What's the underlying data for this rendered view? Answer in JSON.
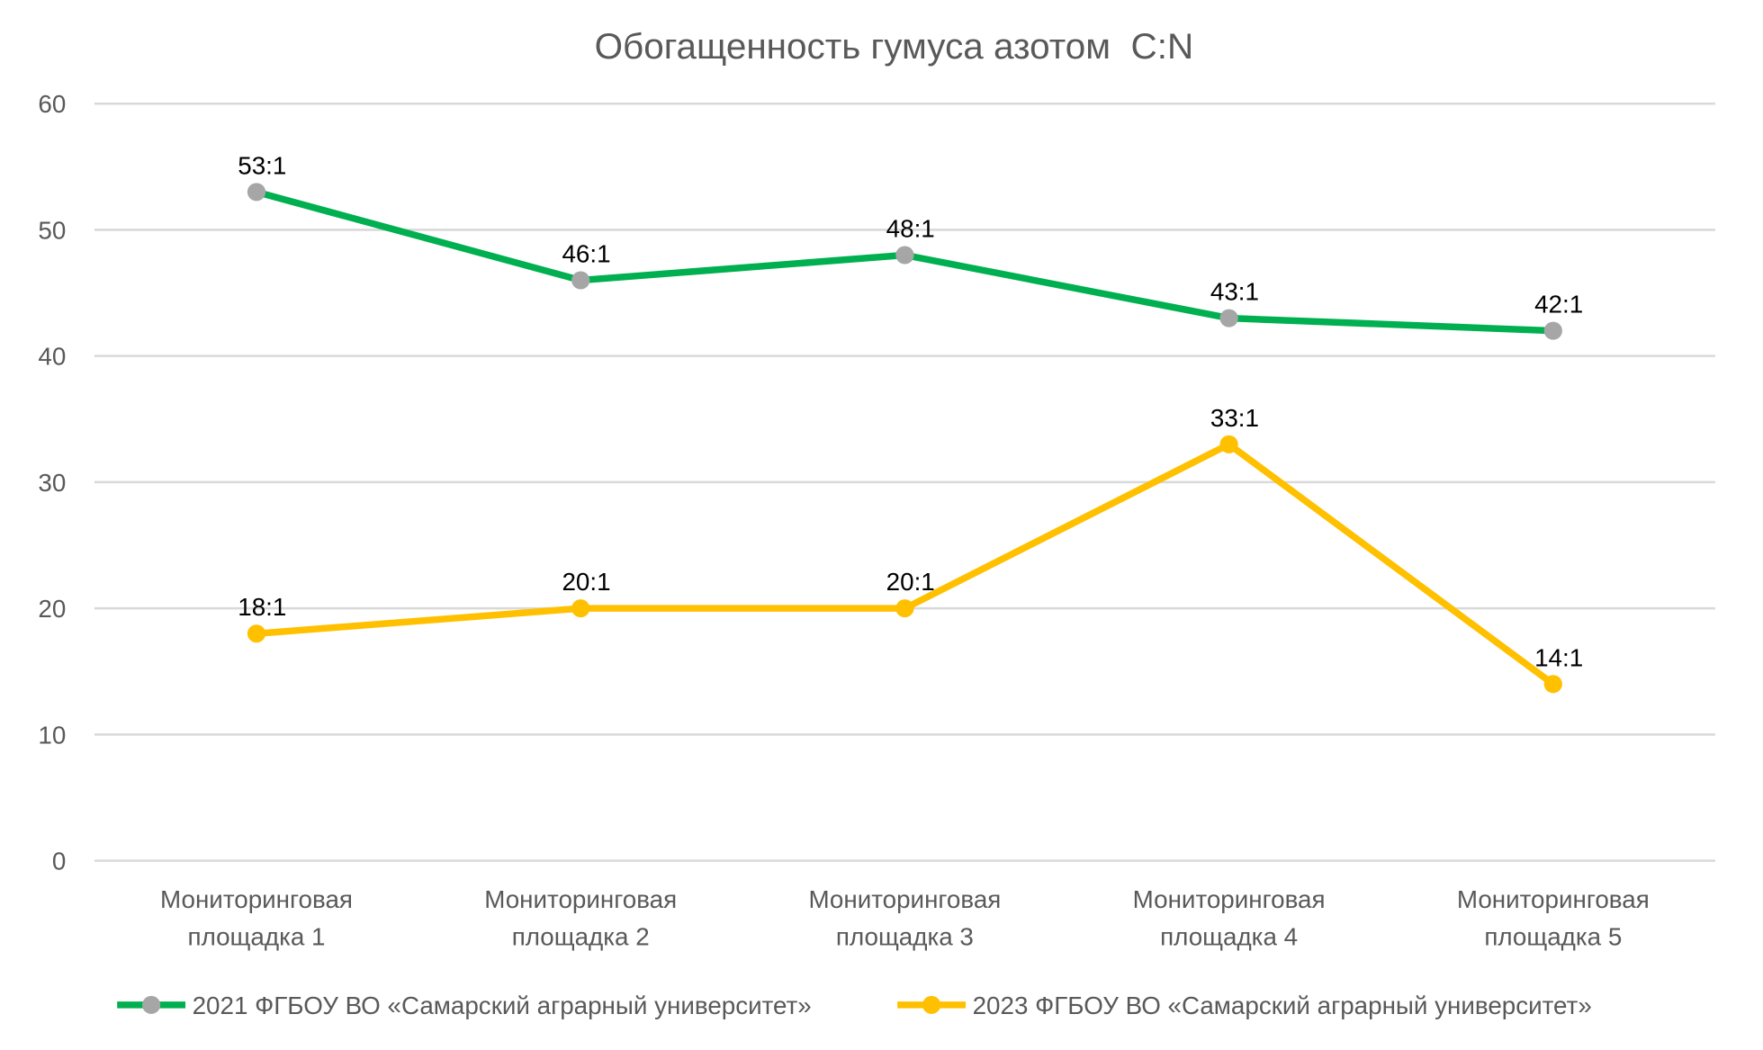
{
  "chart_data": {
    "type": "line",
    "title": "Обогащенность гумуса азотом  C:N",
    "xlabel": "",
    "ylabel": "",
    "ylim": [
      0,
      60
    ],
    "yticks": [
      0,
      10,
      20,
      30,
      40,
      50,
      60
    ],
    "grid": true,
    "legend_position": "bottom",
    "categories": [
      [
        "Мониторинговая",
        "площадка 1"
      ],
      [
        "Мониторинговая",
        "площадка 2"
      ],
      [
        "Мониторинговая",
        "площадка 3"
      ],
      [
        "Мониторинговая",
        "площадка 4"
      ],
      [
        "Мониторинговая",
        "площадка 5"
      ]
    ],
    "series": [
      {
        "name": "2021 ФГБОУ ВО «Самарский аграрный университет»",
        "values": [
          53,
          46,
          48,
          43,
          42
        ],
        "labels": [
          "53:1",
          "46:1",
          "48:1",
          "43:1",
          "42:1"
        ],
        "color": "#00B050",
        "marker_color": "#A6A6A6"
      },
      {
        "name": "2023 ФГБОУ ВО «Самарский аграрный университет»",
        "values": [
          18,
          20,
          20,
          33,
          14
        ],
        "labels": [
          "18:1",
          "20:1",
          "20:1",
          "33:1",
          "14:1"
        ],
        "color": "#FFC000",
        "marker_color": "#FFC000"
      }
    ]
  }
}
